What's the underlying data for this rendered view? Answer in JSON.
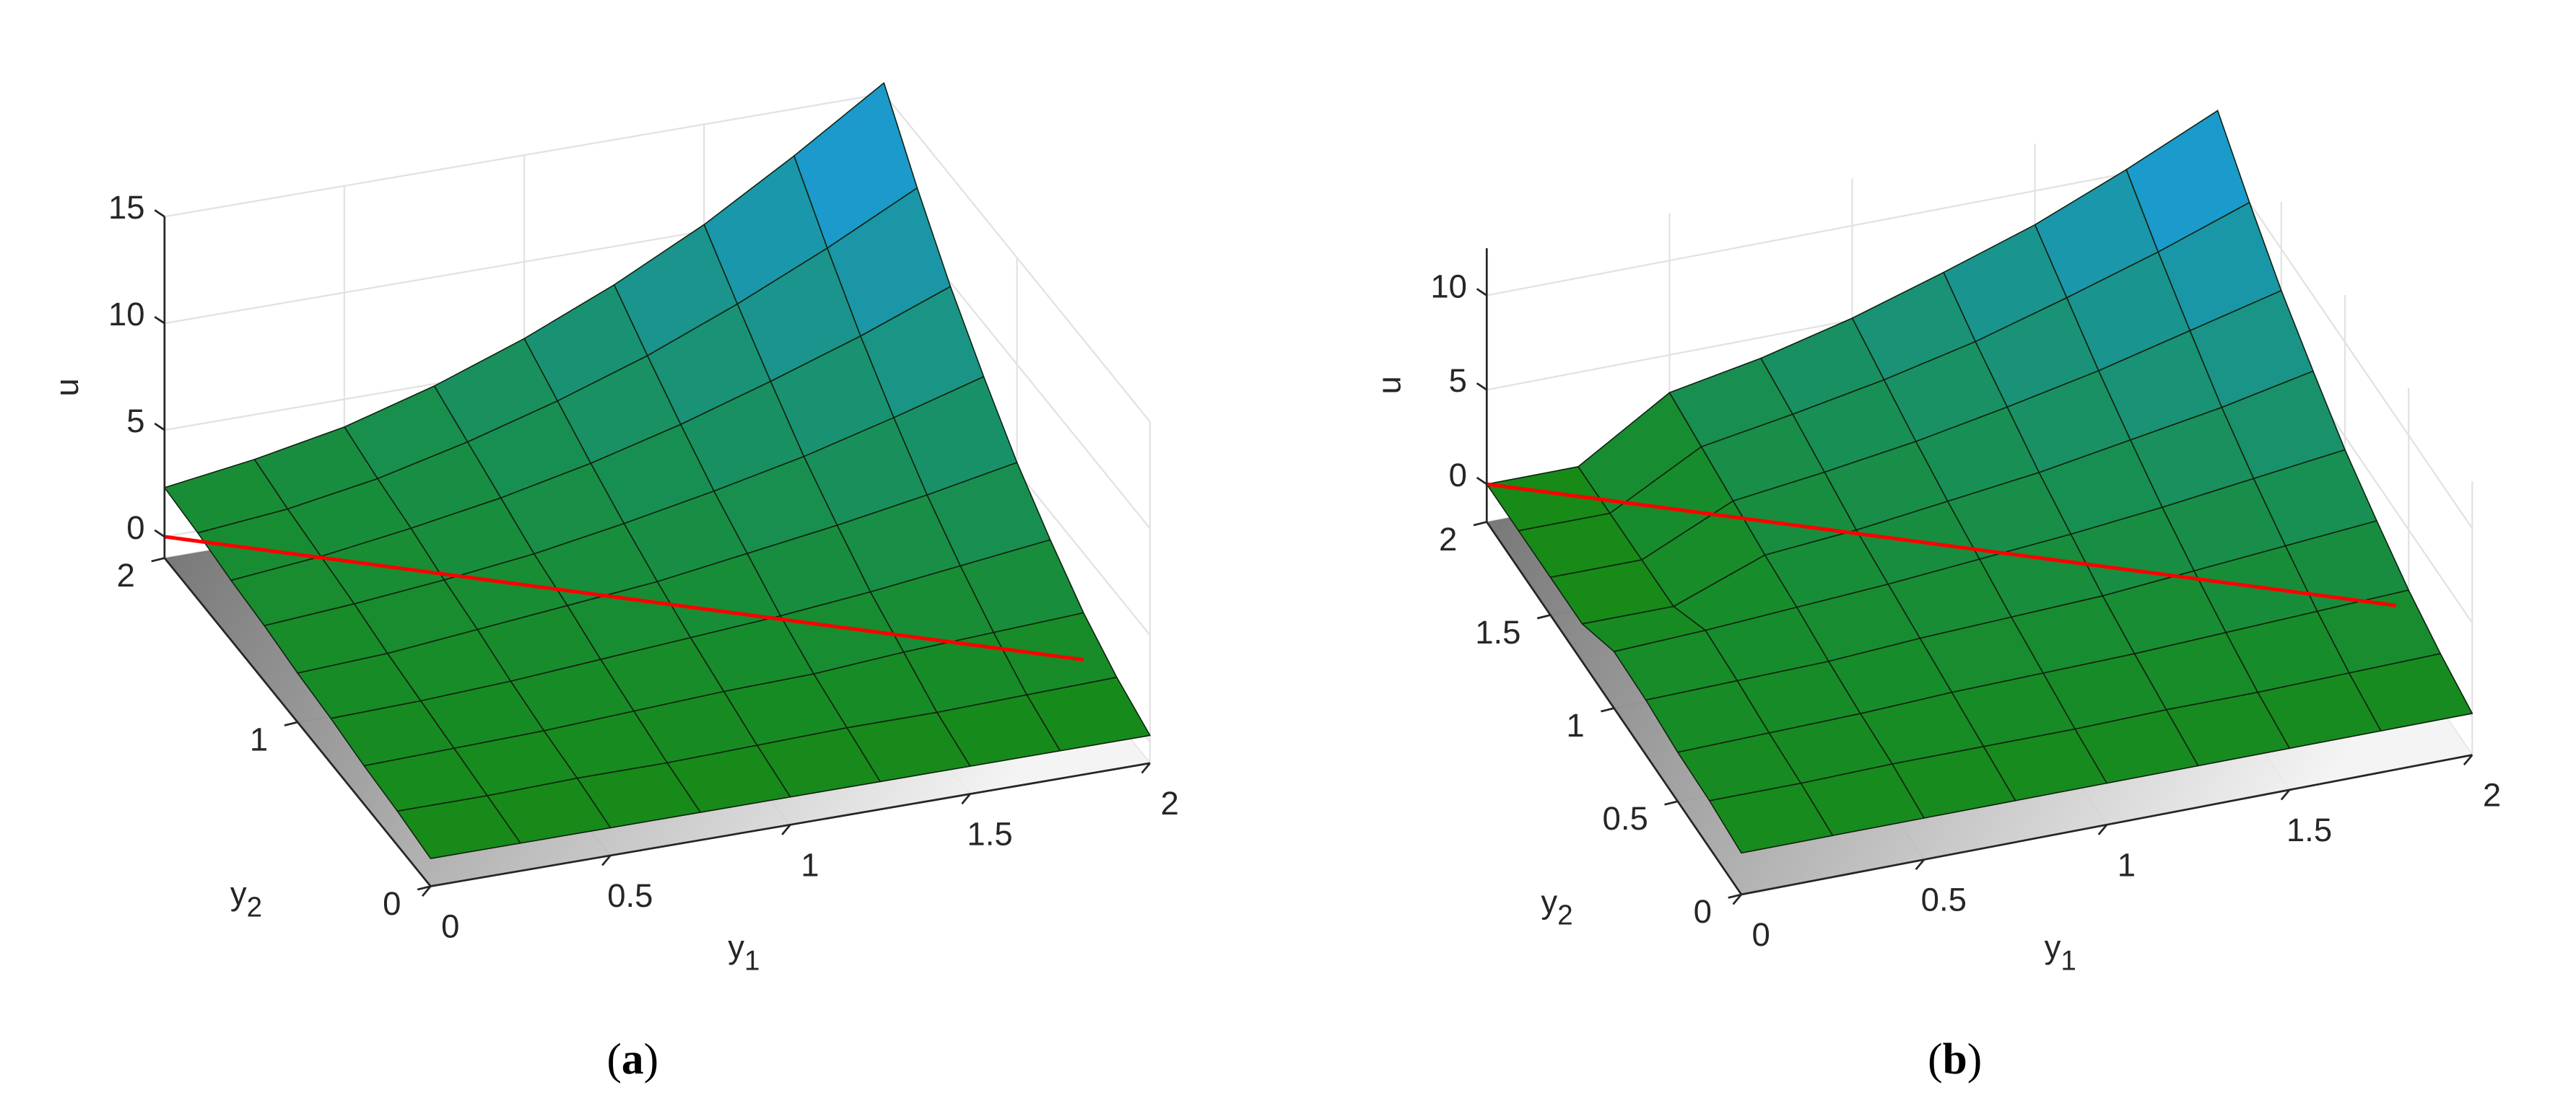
{
  "chart_data": [
    {
      "type": "surface",
      "caption": "(a)",
      "xlabel": "y1",
      "ylabel": "y2",
      "zlabel": "u",
      "x": [
        0,
        0.25,
        0.5,
        0.75,
        1,
        1.25,
        1.5,
        1.75,
        2
      ],
      "y": [
        0,
        0.25,
        0.5,
        0.75,
        1,
        1.25,
        1.5,
        1.75,
        2
      ],
      "z": [
        [
          0.3,
          0.3,
          0.3,
          0.3,
          0.3,
          0.3,
          0.3,
          0.3,
          0.3
        ],
        [
          0.6,
          0.6,
          0.7,
          0.7,
          0.8,
          0.9,
          0.9,
          1,
          1.1
        ],
        [
          0.8,
          0.9,
          1,
          1.2,
          1.4,
          1.5,
          1.8,
          2,
          2.2
        ],
        [
          1.1,
          1.2,
          1.4,
          1.7,
          2,
          2.3,
          2.7,
          3.2,
          3.7
        ],
        [
          1.3,
          1.5,
          1.9,
          2.3,
          2.7,
          3.3,
          3.9,
          4.6,
          5.4
        ],
        [
          1.6,
          1.9,
          2.3,
          2.8,
          3.5,
          4.3,
          5.2,
          6.3,
          7.5
        ],
        [
          1.8,
          2.2,
          2.8,
          3.5,
          4.4,
          5.5,
          6.8,
          8.2,
          9.8
        ],
        [
          2.1,
          2.5,
          3.2,
          4.2,
          5.4,
          6.8,
          8.5,
          10.4,
          12.5
        ],
        [
          2.3,
          2.9,
          3.7,
          4.9,
          6.4,
          8.2,
          10.3,
          12.8,
          15.5
        ]
      ],
      "xlim": [
        0,
        2
      ],
      "ylim": [
        0,
        2
      ],
      "zlim": [
        -1,
        15
      ],
      "xticks": [
        0,
        0.5,
        1,
        1.5,
        2
      ],
      "yticks": [
        0,
        1,
        2
      ],
      "zticks": [
        0,
        5,
        10,
        15
      ],
      "colormap": [
        "#178a17",
        "#1c9df2"
      ],
      "grid": true,
      "line": {
        "color": "#ff0000",
        "x": [
          0,
          2
        ],
        "y": [
          2,
          0.5
        ],
        "z": [
          0,
          0
        ]
      }
    },
    {
      "type": "surface",
      "caption": "(b)",
      "xlabel": "y1",
      "ylabel": "y2",
      "zlabel": "u",
      "x": [
        0,
        0.25,
        0.5,
        0.75,
        1,
        1.25,
        1.5,
        1.75,
        2
      ],
      "y": [
        0,
        0.25,
        0.5,
        0.75,
        1,
        1.25,
        1.5,
        1.75,
        2
      ],
      "z": [
        [
          0.2,
          0.2,
          0.2,
          0.2,
          0.2,
          0.2,
          0.2,
          0.2,
          0.2
        ],
        [
          0.5,
          0.5,
          0.6,
          0.6,
          0.6,
          0.7,
          0.7,
          0.8,
          0.9
        ],
        [
          0.6,
          0.7,
          0.8,
          1,
          1.1,
          1.2,
          1.4,
          1.6,
          1.8
        ],
        [
          0.9,
          1,
          1.1,
          1.4,
          1.6,
          1.8,
          2.2,
          2.6,
          3
        ],
        [
          1,
          1.2,
          1.5,
          1.8,
          2.2,
          2.6,
          3.1,
          3.7,
          4.3
        ],
        [
          0,
          0,
          1.8,
          2.2,
          2.8,
          3.4,
          4.2,
          5,
          6
        ],
        [
          0,
          0,
          2.2,
          2.8,
          3.5,
          4.4,
          5.4,
          6.6,
          7.8
        ],
        [
          0,
          0,
          2.6,
          3.4,
          4.3,
          5.4,
          6.8,
          8.3,
          10
        ],
        [
          0,
          0,
          3,
          3.9,
          5.1,
          6.6,
          8.2,
          10.2,
          12.4
        ]
      ],
      "xlim": [
        0,
        2
      ],
      "ylim": [
        0,
        2
      ],
      "zlim": [
        -2,
        12.5
      ],
      "xticks": [
        0,
        0.5,
        1,
        1.5,
        2
      ],
      "yticks": [
        0,
        0.5,
        1,
        1.5,
        2
      ],
      "zticks": [
        0,
        5,
        10
      ],
      "colormap": [
        "#178a17",
        "#1c9df2"
      ],
      "grid": true,
      "line": {
        "color": "#ff0000",
        "x": [
          0,
          2
        ],
        "y": [
          2,
          0.6
        ],
        "z": [
          0,
          0
        ]
      }
    }
  ]
}
